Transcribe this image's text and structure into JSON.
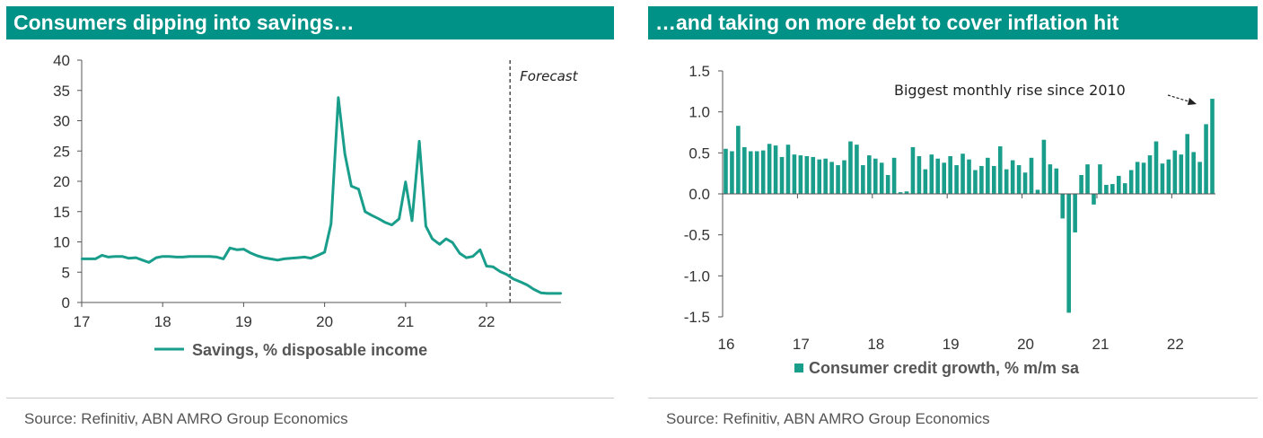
{
  "colors": {
    "accent": "#009286",
    "series": "#1a9e8c",
    "axis": "#333333"
  },
  "left_panel": {
    "title": "Consumers dipping into savings…",
    "source": "Source: Refinitiv, ABN AMRO Group Economics"
  },
  "right_panel": {
    "title": "…and taking on more debt to cover inflation hit",
    "source": "Source: Refinitiv, ABN AMRO Group Economics"
  },
  "chart_data": [
    {
      "type": "line",
      "title": "",
      "xlabel": "",
      "ylabel": "",
      "ylim": [
        0,
        40
      ],
      "yticks": [
        "0",
        "5",
        "10",
        "15",
        "20",
        "25",
        "30",
        "35",
        "40"
      ],
      "xlim": [
        2017.0,
        2022.92
      ],
      "xticks": [
        {
          "value": 2017,
          "label": "17"
        },
        {
          "value": 2018,
          "label": "18"
        },
        {
          "value": 2019,
          "label": "19"
        },
        {
          "value": 2020,
          "label": "20"
        },
        {
          "value": 2021,
          "label": "21"
        },
        {
          "value": 2022,
          "label": "22"
        }
      ],
      "grid": false,
      "legend": "bottom",
      "forecast": {
        "x": 2022.29,
        "label": "Forecast"
      },
      "series": [
        {
          "name": "Savings, % disposable income",
          "x": [
            2017.0,
            2017.08,
            2017.17,
            2017.25,
            2017.33,
            2017.42,
            2017.5,
            2017.58,
            2017.67,
            2017.75,
            2017.83,
            2017.92,
            2018.0,
            2018.08,
            2018.17,
            2018.25,
            2018.33,
            2018.42,
            2018.5,
            2018.58,
            2018.67,
            2018.75,
            2018.83,
            2018.92,
            2019.0,
            2019.08,
            2019.17,
            2019.25,
            2019.33,
            2019.42,
            2019.5,
            2019.58,
            2019.67,
            2019.75,
            2019.83,
            2019.92,
            2020.0,
            2020.08,
            2020.17,
            2020.25,
            2020.33,
            2020.42,
            2020.5,
            2020.58,
            2020.67,
            2020.75,
            2020.83,
            2020.92,
            2021.0,
            2021.08,
            2021.17,
            2021.25,
            2021.33,
            2021.42,
            2021.5,
            2021.58,
            2021.67,
            2021.75,
            2021.83,
            2021.92,
            2022.0,
            2022.08,
            2022.17,
            2022.25,
            2022.33,
            2022.42,
            2022.5,
            2022.58,
            2022.67,
            2022.75,
            2022.83,
            2022.92
          ],
          "values": [
            7.2,
            7.2,
            7.2,
            7.8,
            7.5,
            7.6,
            7.6,
            7.3,
            7.4,
            7.0,
            6.6,
            7.4,
            7.6,
            7.6,
            7.5,
            7.5,
            7.6,
            7.6,
            7.6,
            7.6,
            7.5,
            7.2,
            9.0,
            8.7,
            8.8,
            8.2,
            7.7,
            7.4,
            7.2,
            7.0,
            7.2,
            7.3,
            7.4,
            7.5,
            7.3,
            7.8,
            8.3,
            13.0,
            33.8,
            24.5,
            19.2,
            18.7,
            15.0,
            14.4,
            13.8,
            13.2,
            12.8,
            13.8,
            19.9,
            13.5,
            26.6,
            12.6,
            10.5,
            9.6,
            10.5,
            9.9,
            8.1,
            7.4,
            7.6,
            8.7,
            6.0,
            5.9,
            5.1,
            4.6,
            3.9,
            3.4,
            2.9,
            2.2,
            1.6,
            1.5,
            1.5,
            1.5
          ]
        }
      ]
    },
    {
      "type": "bar",
      "title": "",
      "xlabel": "",
      "ylabel": "",
      "ylim": [
        -1.5,
        1.5
      ],
      "yticks": [
        "-1.5",
        "-1.0",
        "-0.5",
        "0.0",
        "0.5",
        "1.0",
        "1.5"
      ],
      "xticks": [
        {
          "value": 2016,
          "label": "16"
        },
        {
          "value": 2017,
          "label": "17"
        },
        {
          "value": 2018,
          "label": "18"
        },
        {
          "value": 2019,
          "label": "19"
        },
        {
          "value": 2020,
          "label": "20"
        },
        {
          "value": 2021,
          "label": "21"
        },
        {
          "value": 2022,
          "label": "22"
        }
      ],
      "start": "2016-01",
      "grid": false,
      "legend": "bottom",
      "annotation": "Biggest monthly rise since 2010",
      "series": [
        {
          "name": "Consumer credit growth, % m/m sa",
          "values": [
            0.55,
            0.52,
            0.83,
            0.57,
            0.52,
            0.52,
            0.53,
            0.61,
            0.59,
            0.45,
            0.6,
            0.48,
            0.47,
            0.46,
            0.45,
            0.42,
            0.43,
            0.39,
            0.35,
            0.41,
            0.64,
            0.6,
            0.35,
            0.47,
            0.43,
            0.38,
            0.23,
            0.44,
            0.02,
            0.03,
            0.57,
            0.46,
            0.3,
            0.48,
            0.43,
            0.38,
            0.46,
            0.35,
            0.49,
            0.42,
            0.29,
            0.34,
            0.44,
            0.34,
            0.58,
            0.3,
            0.41,
            0.35,
            0.26,
            0.44,
            0.05,
            0.66,
            0.36,
            0.31,
            -0.3,
            -1.45,
            -0.47,
            0.23,
            0.36,
            -0.13,
            0.36,
            0.11,
            0.12,
            0.22,
            0.13,
            0.29,
            0.39,
            0.38,
            0.47,
            0.64,
            0.37,
            0.42,
            0.53,
            0.48,
            0.73,
            0.51,
            0.39,
            0.85,
            1.16
          ]
        }
      ]
    }
  ]
}
